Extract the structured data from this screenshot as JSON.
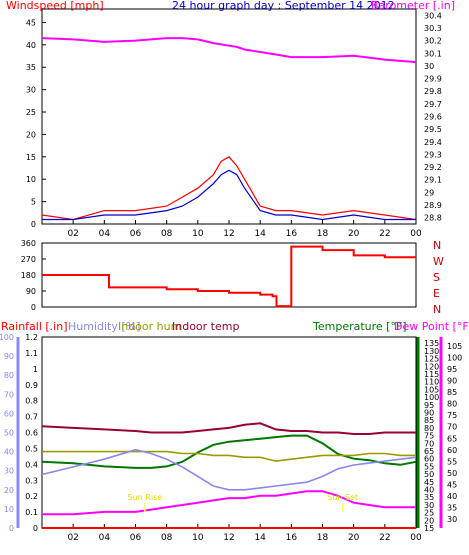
{
  "chart_data": [
    {
      "type": "line",
      "header": {
        "windspeed_label": "Windspeed [mph]",
        "title": "24 hour graph day : September 14 2012",
        "barometer_label": "Barometer [.in]"
      },
      "x_ticks": [
        "02",
        "04",
        "06",
        "08",
        "10",
        "12",
        "14",
        "16",
        "18",
        "20",
        "22",
        "00"
      ],
      "left_axis": {
        "label": "Windspeed [mph]",
        "ticks": [
          "0",
          "5",
          "10",
          "15",
          "20",
          "25",
          "30",
          "35",
          "40",
          "45"
        ],
        "ylim": [
          0,
          48
        ]
      },
      "right_axis": {
        "label": "Barometer [.in]",
        "ticks": [
          "28.8",
          "28.9",
          "29",
          "29.1",
          "29.2",
          "29.3",
          "29.4",
          "29.5",
          "29.6",
          "29.7",
          "29.8",
          "29.9",
          "30",
          "30.1",
          "30.2",
          "30.3",
          "30.4"
        ],
        "ylim": [
          28.75,
          30.45
        ]
      },
      "x": [
        0,
        2,
        4,
        6,
        8,
        9,
        10,
        11,
        11.5,
        12,
        12.5,
        13,
        14,
        15,
        16,
        18,
        20,
        22,
        24
      ],
      "series": [
        {
          "name": "Windspeed",
          "color": "#ff0000",
          "values": [
            2,
            1,
            3,
            3,
            4,
            6,
            8,
            11,
            14,
            15,
            13,
            10,
            4,
            3,
            3,
            2,
            3,
            2,
            1
          ]
        },
        {
          "name": "Wind gust",
          "color": "#0000cc",
          "values": [
            1,
            1,
            2,
            2,
            3,
            4,
            6,
            9,
            11,
            12,
            11,
            8,
            3,
            2,
            2,
            1,
            2,
            1,
            1
          ]
        },
        {
          "name": "Barometer",
          "color": "#ff00ff",
          "values": [
            30.22,
            30.21,
            30.19,
            30.2,
            30.22,
            30.22,
            30.21,
            30.18,
            30.17,
            30.16,
            30.15,
            30.13,
            30.11,
            30.09,
            30.07,
            30.07,
            30.08,
            30.05,
            30.03
          ]
        }
      ]
    },
    {
      "type": "line",
      "right_labels": [
        "N",
        "W",
        "S",
        "E",
        "N"
      ],
      "y_ticks": [
        "0",
        "90",
        "180",
        "270",
        "360"
      ],
      "ylim": [
        0,
        360
      ],
      "x": [
        0,
        4,
        4.3,
        6,
        8,
        10,
        12,
        14,
        14.8,
        15.05,
        16,
        18,
        20,
        22,
        24
      ],
      "series": [
        {
          "name": "Wind direction",
          "color": "#ff0000",
          "values": [
            180,
            180,
            110,
            110,
            100,
            90,
            80,
            70,
            60,
            5,
            340,
            320,
            290,
            280,
            280
          ]
        }
      ]
    },
    {
      "type": "line",
      "header": {
        "rainfall_label": "Rainfall [.in]",
        "humidity_label": "Humidity [%]",
        "indoor_hum_label": "Indoor hum",
        "indoor_temp_label": "Indoor temp",
        "temperature_label": "Temperature [°F]",
        "dewpoint_label": "Dew Point [°F]"
      },
      "x_ticks": [
        "02",
        "04",
        "06",
        "08",
        "10",
        "12",
        "14",
        "16",
        "18",
        "20",
        "22",
        "00"
      ],
      "rain_ticks": [
        "0",
        "0.1",
        "0.2",
        "0.3",
        "0.4",
        "0.5",
        "0.6",
        "0.7",
        "0.8",
        "0.9",
        "1",
        "1.1",
        "1.2"
      ],
      "rain_ylim": [
        0,
        1.2
      ],
      "humidity_ticks": [
        "0",
        "10",
        "20",
        "30",
        "40",
        "50",
        "60",
        "70",
        "80",
        "90",
        "100"
      ],
      "humidity_ylim": [
        0,
        100
      ],
      "temp_ticks": [
        "15",
        "20",
        "25",
        "30",
        "35",
        "40",
        "45",
        "50",
        "55",
        "60",
        "65",
        "70",
        "75",
        "80",
        "85",
        "90",
        "95",
        "100",
        "105",
        "110",
        "115",
        "120",
        "125",
        "130",
        "135"
      ],
      "temp_ylim": [
        15,
        139
      ],
      "dew_ticks": [
        "30",
        "35",
        "40",
        "45",
        "50",
        "55",
        "60",
        "65",
        "70",
        "75",
        "80",
        "85",
        "90",
        "95",
        "100",
        "105"
      ],
      "dew_ylim": [
        26,
        109
      ],
      "annotations": [
        {
          "text": "Sun Rise",
          "x": 6.6
        },
        {
          "text": "Sun Set",
          "x": 19.3
        }
      ],
      "x": [
        0,
        2,
        4,
        6,
        7,
        8,
        9,
        10,
        11,
        12,
        13,
        14,
        15,
        16,
        17,
        18,
        19,
        20,
        21,
        22,
        23,
        24
      ],
      "series": [
        {
          "name": "Indoor temp",
          "color": "#990033",
          "values": [
            81,
            80,
            79,
            78,
            77,
            77,
            77,
            78,
            79,
            80,
            82,
            83,
            79,
            78,
            78,
            77,
            77,
            76,
            76,
            77,
            77,
            77
          ]
        },
        {
          "name": "Temperature",
          "color": "#007700",
          "values": [
            58,
            57,
            55,
            54,
            54,
            55,
            58,
            64,
            69,
            71,
            72,
            73,
            74,
            75,
            75,
            70,
            63,
            60,
            59,
            57,
            56,
            58
          ]
        },
        {
          "name": "Indoor hum",
          "color": "#999900",
          "values": [
            40,
            40,
            40,
            40,
            40,
            40,
            39,
            39,
            38,
            38,
            37,
            37,
            35,
            36,
            37,
            38,
            38,
            38,
            39,
            39,
            38,
            38
          ]
        },
        {
          "name": "Humidity",
          "color": "#8888ee",
          "values": [
            28,
            32,
            36,
            41,
            39,
            36,
            32,
            27,
            22,
            20,
            20,
            21,
            22,
            23,
            24,
            27,
            31,
            33,
            34,
            35,
            36,
            37
          ]
        },
        {
          "name": "Dew Point",
          "color": "#ff00ff",
          "values": [
            32,
            32,
            33,
            33,
            34,
            35,
            36,
            37,
            38,
            39,
            39,
            40,
            40,
            41,
            42,
            42,
            40,
            37,
            36,
            35,
            35,
            35
          ]
        },
        {
          "name": "Rainfall",
          "color": "#ff0000",
          "values": [
            0,
            0,
            0,
            0,
            0,
            0,
            0,
            0,
            0,
            0,
            0,
            0,
            0,
            0,
            0,
            0,
            0,
            0,
            0,
            0,
            0,
            0
          ]
        }
      ]
    }
  ]
}
